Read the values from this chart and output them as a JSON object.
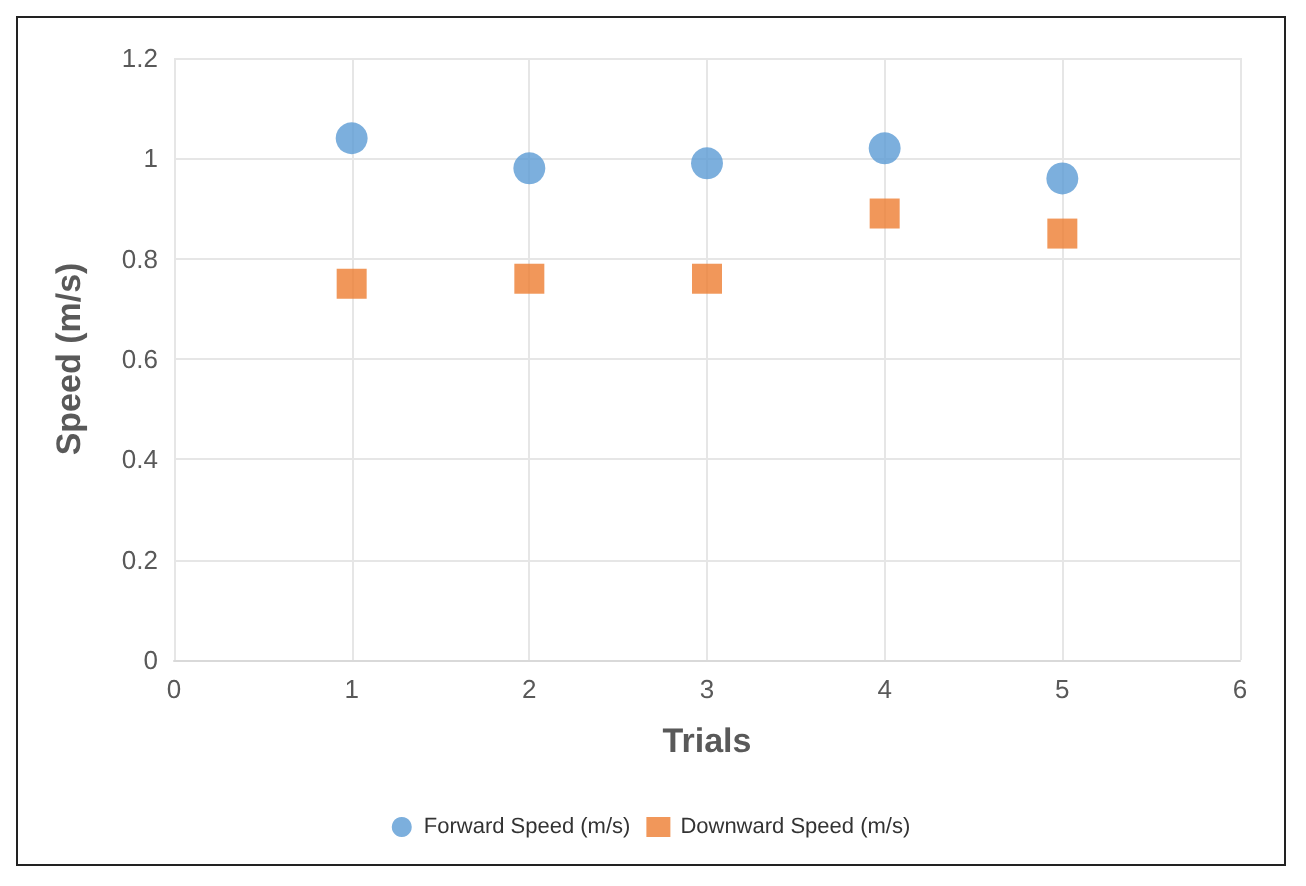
{
  "chart_data": {
    "type": "scatter",
    "xlabel": "Trials",
    "ylabel": "Speed (m/s)",
    "x": [
      1,
      2,
      3,
      4,
      5
    ],
    "series": [
      {
        "name": "Forward Speed (m/s)",
        "color": "#5b9bd5",
        "marker": "circle",
        "values": [
          1.04,
          0.98,
          0.99,
          1.02,
          0.96
        ]
      },
      {
        "name": "Downward Speed (m/s)",
        "color": "#ed7d31",
        "marker": "square",
        "values": [
          0.75,
          0.76,
          0.76,
          0.89,
          0.85
        ]
      }
    ],
    "xlim": [
      0,
      6
    ],
    "xticks": [
      0,
      1,
      2,
      3,
      4,
      5,
      6
    ],
    "ylim": [
      0,
      1.2
    ],
    "yticks": [
      0,
      0.2,
      0.4,
      0.6,
      0.8,
      1,
      1.2
    ],
    "grid": true,
    "legend": "bottom"
  }
}
